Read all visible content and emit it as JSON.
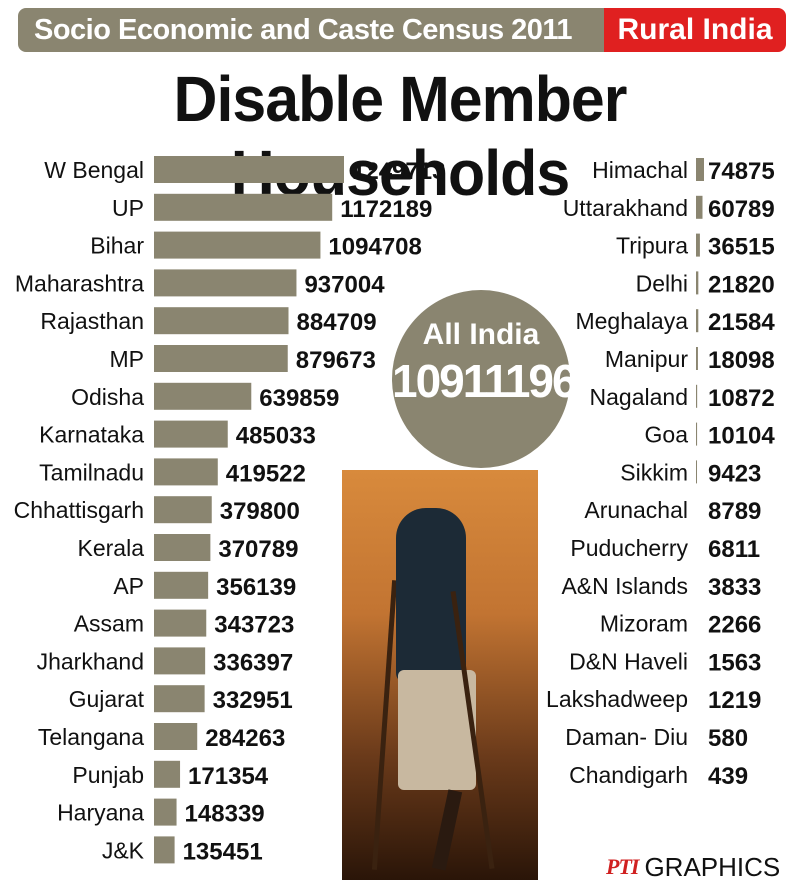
{
  "header": {
    "census": "Socio Economic and Caste Census 2011",
    "region": "Rural India"
  },
  "title": "Disable Member Households",
  "total": {
    "label": "All India",
    "value": "10911196"
  },
  "credit": {
    "logo": "PTI",
    "word": "GRAPHICS"
  },
  "colors": {
    "bar": "#8a8570",
    "accent": "#e02020",
    "text": "#111111"
  },
  "chart_data": {
    "type": "bar",
    "orientation": "horizontal",
    "title": "Disable Member Households",
    "series_left": [
      {
        "name": "W Bengal",
        "value": 1249713
      },
      {
        "name": "UP",
        "value": 1172189
      },
      {
        "name": "Bihar",
        "value": 1094708
      },
      {
        "name": "Maharashtra",
        "value": 937004
      },
      {
        "name": "Rajasthan",
        "value": 884709
      },
      {
        "name": "MP",
        "value": 879673
      },
      {
        "name": "Odisha",
        "value": 639859
      },
      {
        "name": "Karnataka",
        "value": 485033
      },
      {
        "name": "Tamilnadu",
        "value": 419522
      },
      {
        "name": "Chhattisgarh",
        "value": 379800
      },
      {
        "name": "Kerala",
        "value": 370789
      },
      {
        "name": "AP",
        "value": 356139
      },
      {
        "name": "Assam",
        "value": 343723
      },
      {
        "name": "Jharkhand",
        "value": 336397
      },
      {
        "name": "Gujarat",
        "value": 332951
      },
      {
        "name": "Telangana",
        "value": 284263
      },
      {
        "name": "Punjab",
        "value": 171354
      },
      {
        "name": "Haryana",
        "value": 148339
      },
      {
        "name": "J&K",
        "value": 135451
      }
    ],
    "series_right": [
      {
        "name": "Himachal",
        "value": 74875
      },
      {
        "name": "Uttarakhand",
        "value": 60789
      },
      {
        "name": "Tripura",
        "value": 36515
      },
      {
        "name": "Delhi",
        "value": 21820
      },
      {
        "name": "Meghalaya",
        "value": 21584
      },
      {
        "name": "Manipur",
        "value": 18098
      },
      {
        "name": "Nagaland",
        "value": 10872
      },
      {
        "name": "Goa",
        "value": 10104
      },
      {
        "name": "Sikkim",
        "value": 9423
      },
      {
        "name": "Arunachal",
        "value": 8789
      },
      {
        "name": "Puducherry",
        "value": 6811
      },
      {
        "name": "A&N Islands",
        "value": 3833
      },
      {
        "name": "Mizoram",
        "value": 2266
      },
      {
        "name": "D&N Haveli",
        "value": 1563
      },
      {
        "name": "Lakshadweep",
        "value": 1219
      },
      {
        "name": "Daman- Diu",
        "value": 580
      },
      {
        "name": "Chandigarh",
        "value": 439
      }
    ]
  }
}
